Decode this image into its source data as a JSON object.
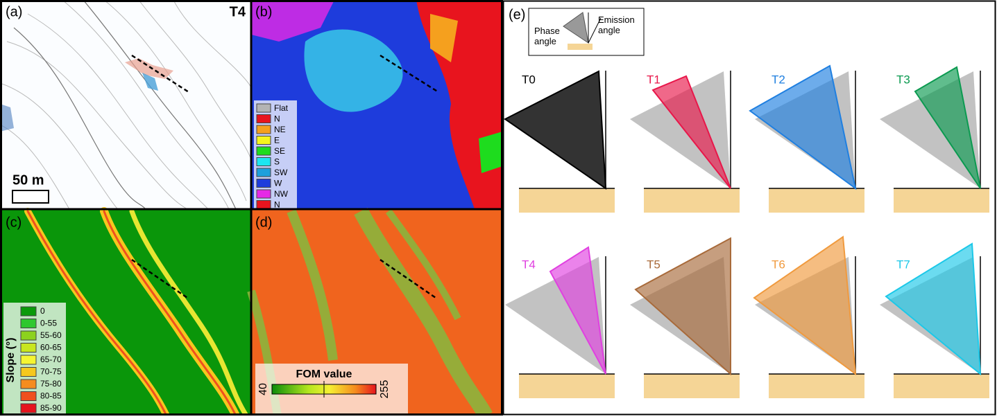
{
  "panels": {
    "a": {
      "label": "(a)",
      "tag": "T4",
      "scale_label": "50 m"
    },
    "b": {
      "label": "(b)",
      "legend": [
        {
          "name": "Flat",
          "color": "#b4b4b4"
        },
        {
          "name": "N",
          "color": "#e8141e"
        },
        {
          "name": "NE",
          "color": "#f5a01e"
        },
        {
          "name": "E",
          "color": "#f5f51e"
        },
        {
          "name": "SE",
          "color": "#1edc1e"
        },
        {
          "name": "S",
          "color": "#1ee6f0"
        },
        {
          "name": "SW",
          "color": "#1ea0dc"
        },
        {
          "name": "W",
          "color": "#1e3cdc"
        },
        {
          "name": "NW",
          "color": "#e628e6"
        },
        {
          "name": "N",
          "color": "#e8141e"
        }
      ]
    },
    "c": {
      "label": "(c)",
      "legend_title": "Slope (°)",
      "legend": [
        {
          "name": "0",
          "color": "#0a9a0a"
        },
        {
          "name": "0-55",
          "color": "#2ec82e"
        },
        {
          "name": "55-60",
          "color": "#8cd21e"
        },
        {
          "name": "60-65",
          "color": "#c8e61e"
        },
        {
          "name": "65-70",
          "color": "#f5f532"
        },
        {
          "name": "70-75",
          "color": "#f5c81e"
        },
        {
          "name": "75-80",
          "color": "#f58c1e"
        },
        {
          "name": "80-85",
          "color": "#f0501e"
        },
        {
          "name": "85-90",
          "color": "#e6141e"
        }
      ]
    },
    "d": {
      "label": "(d)",
      "colorbar_title": "FOM value",
      "colorbar_min": 40,
      "colorbar_max": 255
    },
    "e": {
      "label": "(e)",
      "inset": {
        "phase": [
          "Phase",
          "angle"
        ],
        "emission": [
          "Emission",
          "angle"
        ]
      },
      "geometries": [
        {
          "name": "T0",
          "color": "#333333"
        },
        {
          "name": "T1",
          "color": "#e8174a"
        },
        {
          "name": "T2",
          "color": "#1f7fe0"
        },
        {
          "name": "T3",
          "color": "#0b9a50"
        },
        {
          "name": "T4",
          "color": "#e040e0"
        },
        {
          "name": "T5",
          "color": "#a86a3a"
        },
        {
          "name": "T6",
          "color": "#f09a3e"
        },
        {
          "name": "T7",
          "color": "#1cc8e8"
        }
      ]
    }
  }
}
